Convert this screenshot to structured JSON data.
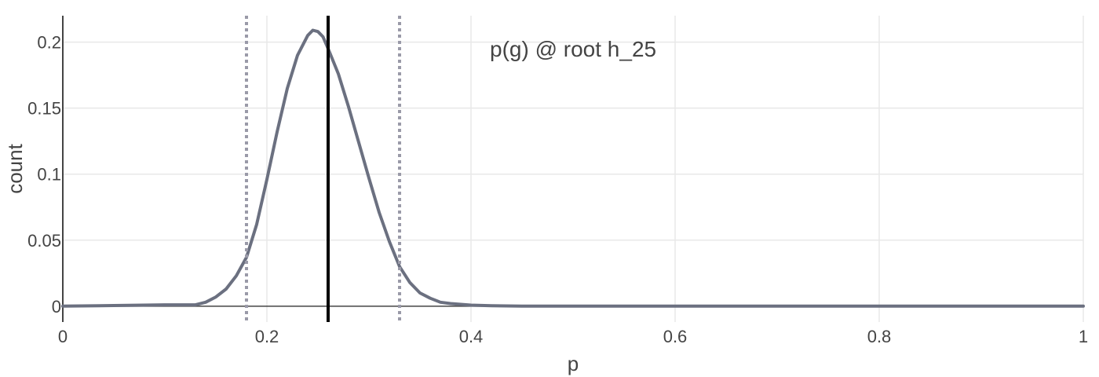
{
  "chart_data": {
    "type": "line",
    "title": "",
    "xlabel": "p",
    "ylabel": "count",
    "annotation": "p(g) @ root h_25",
    "xlim": [
      0,
      1
    ],
    "ylim": [
      -0.012,
      0.22
    ],
    "x_ticks": [
      0,
      0.2,
      0.4,
      0.6,
      0.8,
      1
    ],
    "x_tick_labels": [
      "0",
      "0.2",
      "0.4",
      "0.6",
      "0.8",
      "1"
    ],
    "y_ticks": [
      0,
      0.05,
      0.1,
      0.15,
      0.2
    ],
    "y_tick_labels": [
      "0",
      "0.05",
      "0.1",
      "0.15",
      "0.2"
    ],
    "grid": true,
    "colors": {
      "curve": "#6b7080",
      "grid": "#e8e8e8",
      "mean": "#000000",
      "interval": "#9a9aa8"
    },
    "reference_lines": [
      {
        "name": "lower-bound",
        "x": 0.18,
        "style": "dotted"
      },
      {
        "name": "mean",
        "x": 0.26,
        "style": "solid"
      },
      {
        "name": "upper-bound",
        "x": 0.33,
        "style": "dotted"
      }
    ],
    "series": [
      {
        "x": [
          0,
          0.05,
          0.1,
          0.13,
          0.14,
          0.15,
          0.16,
          0.17,
          0.18,
          0.19,
          0.2,
          0.21,
          0.22,
          0.23,
          0.24,
          0.245,
          0.25,
          0.255,
          0.26,
          0.27,
          0.28,
          0.29,
          0.3,
          0.31,
          0.32,
          0.33,
          0.34,
          0.35,
          0.36,
          0.37,
          0.38,
          0.4,
          0.42,
          0.45,
          0.5,
          0.6,
          0.7,
          0.8,
          0.9,
          1.0
        ],
        "values": [
          0,
          0.0005,
          0.001,
          0.001,
          0.003,
          0.007,
          0.013,
          0.023,
          0.037,
          0.062,
          0.096,
          0.132,
          0.165,
          0.19,
          0.205,
          0.209,
          0.208,
          0.204,
          0.195,
          0.176,
          0.151,
          0.124,
          0.097,
          0.071,
          0.049,
          0.03,
          0.018,
          0.01,
          0.006,
          0.003,
          0.002,
          0.0008,
          0.0003,
          0.0001,
          0,
          0,
          0,
          0,
          0,
          0
        ]
      }
    ]
  }
}
